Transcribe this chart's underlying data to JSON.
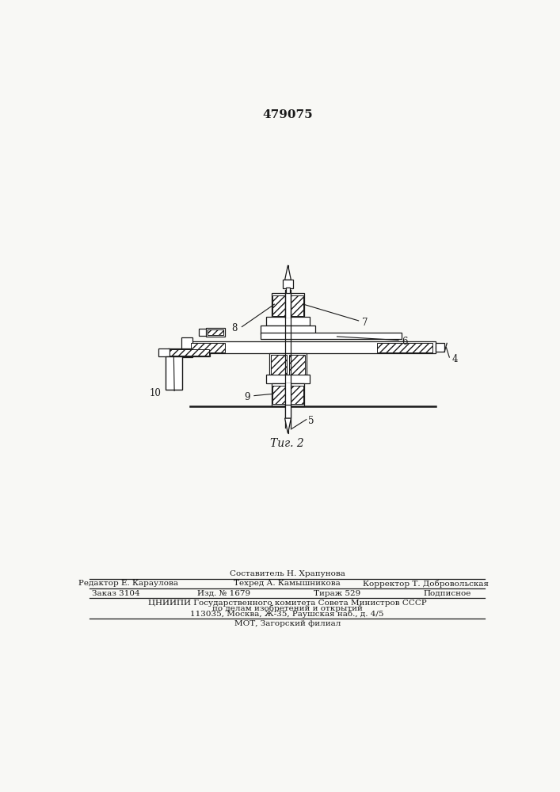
{
  "patent_number": "479075",
  "fig_label": "Τиг. 2",
  "bg_color": "#f8f8f5",
  "line_color": "#1a1a1a",
  "footer_line1": "Составитель Н. Храпунова",
  "footer_line2_left": "Редактор Е. Караулова",
  "footer_line2_mid": "Техред А. Камышникова",
  "footer_line2_right": "Корректор Т. Добровольская",
  "footer_line3_left": "Заказ 3104",
  "footer_line3_mid": "Изд. № 1679",
  "footer_line3_mid2": "Тираж 529",
  "footer_line3_right": "Подписное",
  "footer_line4": "ЦНИИПИ Государственного комитета Совета Министров СССР",
  "footer_line5": "по делам изобретений и открытий",
  "footer_line6": "113035, Москва, Ж-35, Раушская наб., д. 4/5",
  "footer_line7": "МОТ, Загорский филиал"
}
